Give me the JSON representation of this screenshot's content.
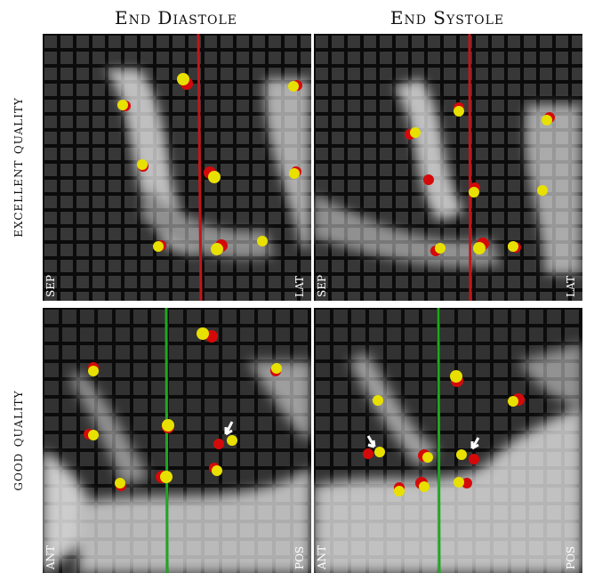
{
  "columns": {
    "end_diastole": "End Diastole",
    "end_systole": "End Systole"
  },
  "rows": {
    "excellent": "excellent quality",
    "good": "good quality"
  },
  "panels": {
    "excellent_diastole": {
      "left_label": "SEP",
      "right_label": "LAT",
      "line_color": "#c0161a"
    },
    "excellent_systole": {
      "left_label": "SEP",
      "right_label": "LAT",
      "line_color": "#c0161a"
    },
    "good_diastole": {
      "left_label": "ANT",
      "right_label": "POS",
      "line_color": "#1fa81f"
    },
    "good_systole": {
      "left_label": "ANT",
      "right_label": "POS",
      "line_color": "#1fa81f"
    }
  },
  "colors": {
    "marker_red": "#d40a0a",
    "marker_yellow": "#e8e000",
    "arrow": "#ffffff"
  }
}
